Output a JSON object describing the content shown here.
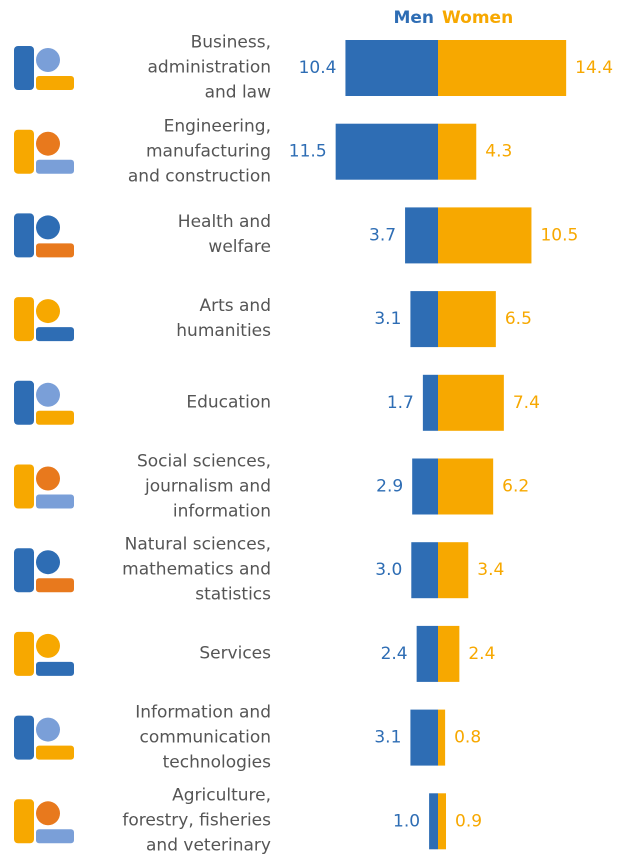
{
  "chart_data": {
    "type": "bar",
    "categories": [
      "Business,\nadministration\nand law",
      "Engineering,\nmanufacturing\nand construction",
      "Health and\nwelfare",
      "Arts and\nhumanities",
      "Education",
      "Social sciences,\njournalism and\ninformation",
      "Natural sciences,\nmathematics and\nstatistics",
      "Services",
      "Information and\ncommunication\ntechnologies",
      "Agriculture,\nforestry, fisheries\nand veterinary"
    ],
    "series": [
      {
        "name": "Men",
        "color": "#2e6db4",
        "values": [
          10.4,
          11.5,
          3.7,
          3.1,
          1.7,
          2.9,
          3.0,
          2.4,
          3.1,
          1.0
        ],
        "value_labels": [
          "10.4",
          "11.5",
          "3.7",
          "3.1",
          "1.7",
          "2.9",
          "3.0",
          "2.4",
          "3.1",
          "1.0"
        ]
      },
      {
        "name": "Women",
        "color": "#f7a800",
        "values": [
          14.4,
          4.3,
          10.5,
          6.5,
          7.4,
          6.2,
          3.4,
          2.4,
          0.8,
          0.9
        ],
        "value_labels": [
          "14.4",
          "4.3",
          "10.5",
          "6.5",
          "7.4",
          "6.2",
          "3.4",
          "2.4",
          "0.8",
          "0.9"
        ]
      }
    ]
  }
}
